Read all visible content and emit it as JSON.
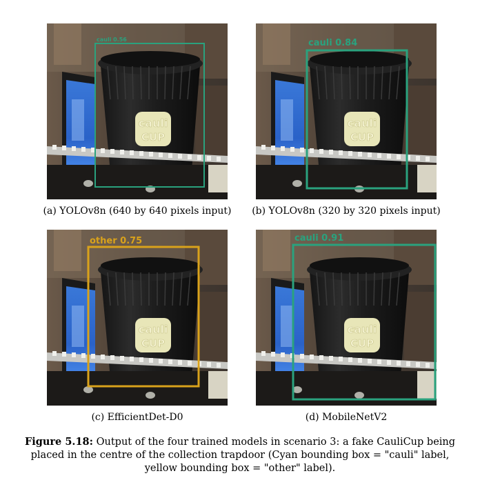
{
  "panels": [
    {
      "caption": "(a) YOLOv8n (640 by 640 pixels input)",
      "label": "cauli 0.56",
      "color": "#2aa27e",
      "confidence": 0.56
    },
    {
      "caption": "(b) YOLOv8n (320 by 320 pixels input)",
      "label": "cauli  0.84",
      "color": "#2aa27e",
      "confidence": 0.84
    },
    {
      "caption": "(c) EfficientDet-D0",
      "label": "other  0.75",
      "color": "#d9a21b",
      "confidence": 0.75
    },
    {
      "caption": "(d) MobileNetV2",
      "label": "cauli  0.91",
      "color": "#2aa27e",
      "confidence": 0.91
    }
  ],
  "cup_logo_text": [
    "cauli",
    "CUP"
  ],
  "figure": {
    "label": "Figure 5.18:",
    "text": " Output of the four trained models in scenario 3: a fake CauliCup being placed in the centre of the collection trapdoor (Cyan bounding box = \"cauli\" label, yellow bounding box = \"other\" label)."
  }
}
